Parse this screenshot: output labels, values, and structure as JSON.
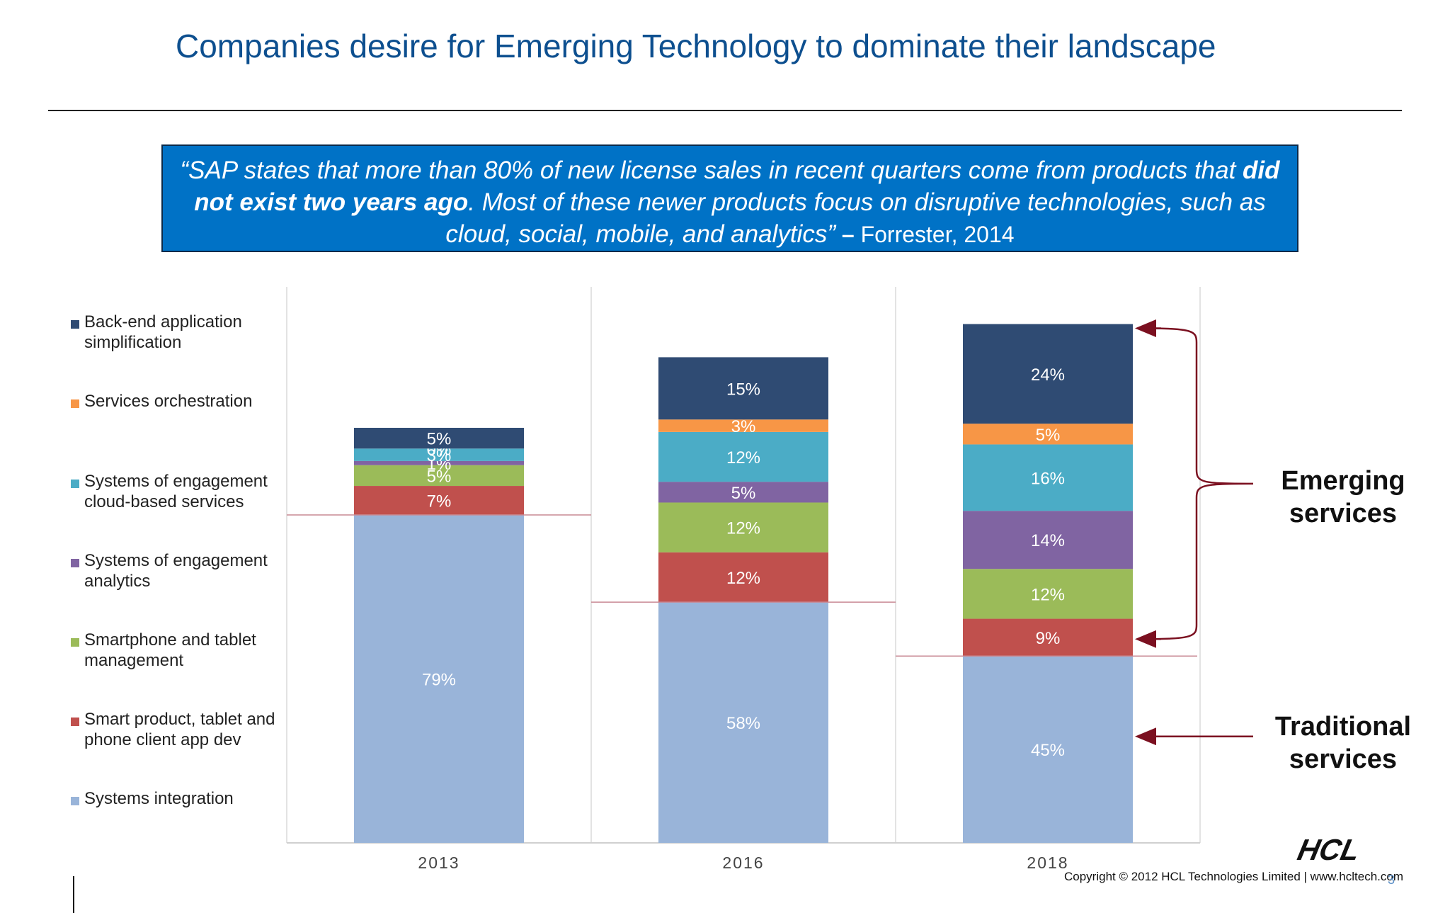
{
  "slide": {
    "title": "Companies desire for Emerging Technology to dominate their landscape",
    "title_color": "#0d4f8f",
    "quote": {
      "open": "“SAP states that more than 80% of new license sales in recent quarters come from products that ",
      "bold": "did not exist two years ago",
      "rest": ". Most of these newer products focus on disruptive technologies, such as cloud, social, mobile, and analytics”",
      "dash": " – ",
      "source": "Forrester, 2014",
      "background": "#0072c6"
    },
    "callouts": {
      "emerging": "Emerging services",
      "traditional": "Traditional services",
      "arrow_color": "#7b1020"
    },
    "footer": {
      "logo_text": "HCL",
      "copyright": "Copyright © 2012 HCL Technologies Limited  |  www.hcltech.com",
      "page_number": "3"
    }
  },
  "chart_data": {
    "type": "bar",
    "stacked": true,
    "categories": [
      "2013",
      "2016",
      "2018"
    ],
    "series": [
      {
        "name": "Systems integration",
        "color": "#99b4d9",
        "values": [
          79,
          58,
          45
        ],
        "labels": [
          "79%",
          "58%",
          "45%"
        ]
      },
      {
        "name": "Smart product, tablet and phone client app dev",
        "color": "#c0504d",
        "values": [
          7,
          12,
          9
        ],
        "labels": [
          "7%",
          "12%",
          "9%"
        ]
      },
      {
        "name": "Smartphone and tablet management",
        "color": "#9bbb59",
        "values": [
          5,
          12,
          12
        ],
        "labels": [
          "5%",
          "12%",
          "12%"
        ]
      },
      {
        "name": "Systems of engagement analytics",
        "color": "#8064a2",
        "values": [
          1,
          5,
          14
        ],
        "labels": [
          "1%",
          "5%",
          "14%"
        ]
      },
      {
        "name": "Systems of engagement cloud-based services",
        "color": "#4bacc6",
        "values": [
          3,
          12,
          16
        ],
        "labels": [
          "3%",
          "12%",
          "16%"
        ]
      },
      {
        "name": "Services orchestration",
        "color": "#f79646",
        "values": [
          0,
          3,
          5
        ],
        "labels": [
          "0%",
          "3%",
          "5%"
        ]
      },
      {
        "name": "Back-end application simplification",
        "color": "#2f4b73",
        "values": [
          5,
          15,
          24
        ],
        "labels": [
          "5%",
          "15%",
          "24%"
        ]
      }
    ],
    "ylim": [
      0,
      140
    ],
    "legend_position": "left",
    "grid": false,
    "title": "",
    "xlabel": "",
    "ylabel": ""
  }
}
